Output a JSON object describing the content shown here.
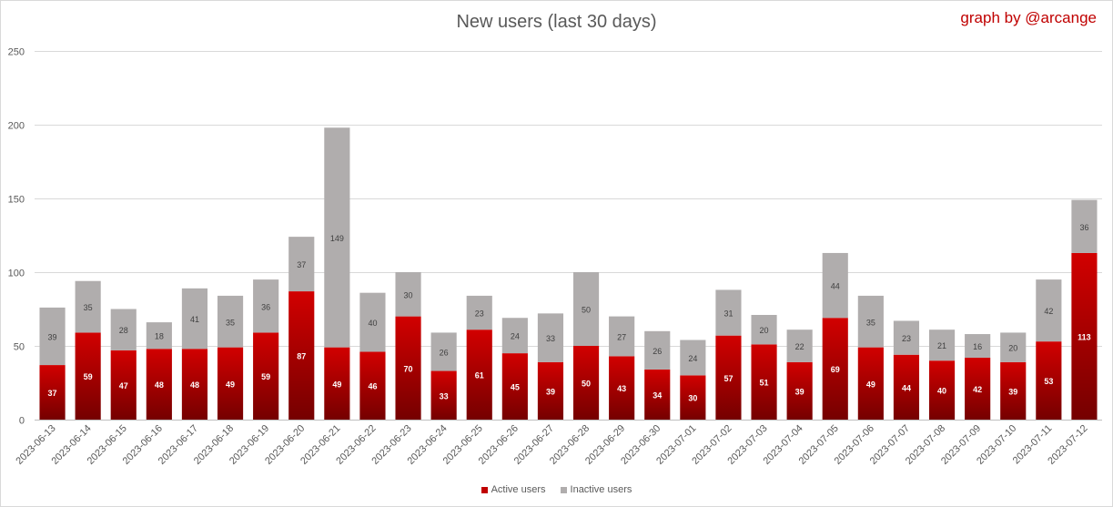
{
  "title": "New users (last 30 days)",
  "credit": "graph by @arcange",
  "colors": {
    "active": "#c00000",
    "active_dark": "#7a0000",
    "inactive": "#b0adad",
    "grid": "#d9d9d9",
    "text": "#595959",
    "label_light": "#ffffff",
    "label_dark": "#404040"
  },
  "legend": [
    {
      "label": "Active users",
      "color": "#c00000"
    },
    {
      "label": "Inactive users",
      "color": "#b0adad"
    }
  ],
  "chart_data": {
    "type": "bar",
    "stacked": true,
    "title": "New users (last 30 days)",
    "xlabel": "",
    "ylabel": "",
    "ylim": [
      0,
      250
    ],
    "yticks": [
      0,
      50,
      100,
      150,
      200,
      250
    ],
    "grid": true,
    "legend_position": "bottom",
    "categories": [
      "2023-06-13",
      "2023-06-14",
      "2023-06-15",
      "2023-06-16",
      "2023-06-17",
      "2023-06-18",
      "2023-06-19",
      "2023-06-20",
      "2023-06-21",
      "2023-06-22",
      "2023-06-23",
      "2023-06-24",
      "2023-06-25",
      "2023-06-26",
      "2023-06-27",
      "2023-06-28",
      "2023-06-29",
      "2023-06-30",
      "2023-07-01",
      "2023-07-02",
      "2023-07-03",
      "2023-07-04",
      "2023-07-05",
      "2023-07-06",
      "2023-07-07",
      "2023-07-08",
      "2023-07-09",
      "2023-07-10",
      "2023-07-11",
      "2023-07-12"
    ],
    "series": [
      {
        "name": "Active users",
        "color": "#c00000",
        "values": [
          37,
          59,
          47,
          48,
          48,
          49,
          59,
          87,
          49,
          46,
          70,
          33,
          61,
          45,
          39,
          50,
          43,
          34,
          30,
          57,
          51,
          39,
          69,
          49,
          44,
          40,
          42,
          39,
          53,
          113
        ]
      },
      {
        "name": "Inactive users",
        "color": "#b0adad",
        "values": [
          39,
          35,
          28,
          18,
          41,
          35,
          36,
          37,
          149,
          40,
          30,
          26,
          23,
          24,
          33,
          50,
          27,
          26,
          24,
          31,
          20,
          22,
          44,
          35,
          23,
          21,
          16,
          20,
          42,
          36
        ]
      }
    ]
  }
}
